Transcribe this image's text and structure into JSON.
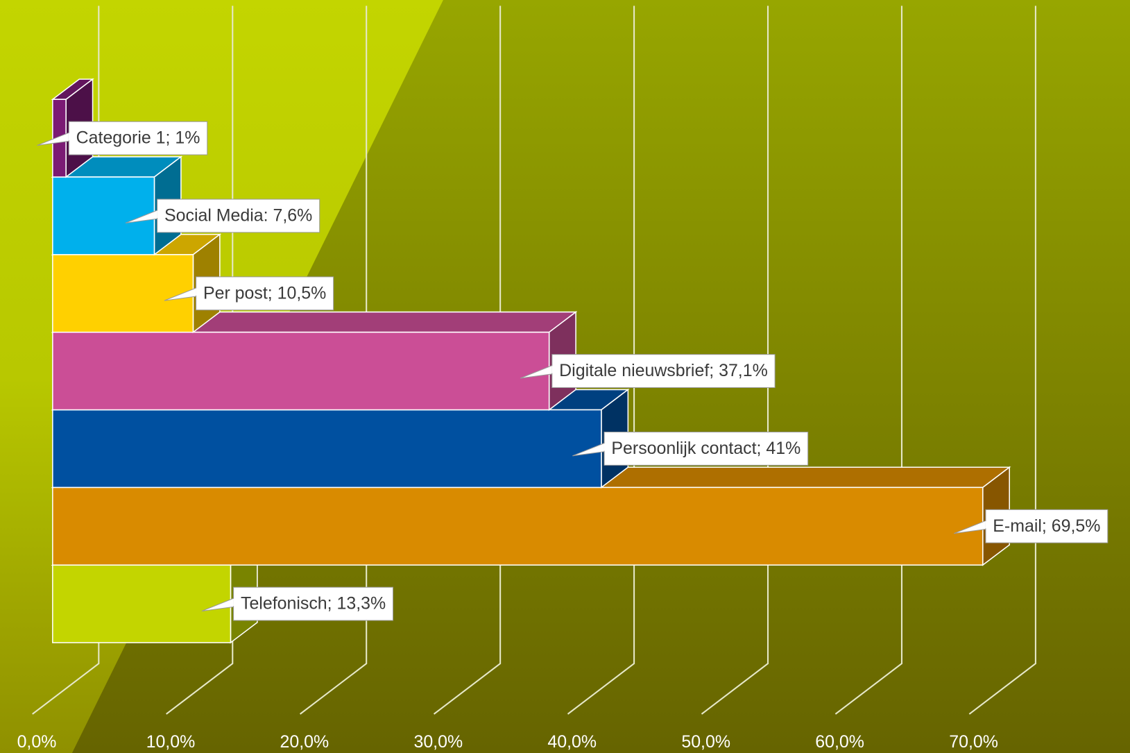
{
  "chart_data": {
    "type": "bar",
    "orientation": "horizontal",
    "categories": [
      "Telefonisch",
      "E-mail",
      "Persoonlijk contact",
      "Digitale nieuwsbrief",
      "Per post",
      "Social Media",
      "Categorie 1"
    ],
    "values": [
      13.3,
      69.5,
      41,
      37.1,
      10.5,
      7.6,
      1
    ],
    "value_labels": [
      "Telefonisch; 13,3%",
      "E-mail; 69,5%",
      "Persoonlijk contact; 41%",
      "Digitale nieuwsbrief; 37,1%",
      "Per post; 10,5%",
      "Social Media: 7,6%",
      "Categorie 1; 1%"
    ],
    "colors": [
      "#c3d500",
      "#d98b00",
      "#0050a0",
      "#cb4e96",
      "#ffd000",
      "#00b0ec",
      "#7b1a74"
    ],
    "xlim": [
      0,
      70
    ],
    "xticks": [
      {
        "value": 0,
        "label": "0,0%"
      },
      {
        "value": 10,
        "label": "10,0%"
      },
      {
        "value": 20,
        "label": "20,0%"
      },
      {
        "value": 30,
        "label": "30,0%"
      },
      {
        "value": 40,
        "label": "40,0%"
      },
      {
        "value": 50,
        "label": "50,0%"
      },
      {
        "value": 60,
        "label": "60,0%"
      },
      {
        "value": 70,
        "label": "70,0%"
      }
    ],
    "grid": true
  }
}
